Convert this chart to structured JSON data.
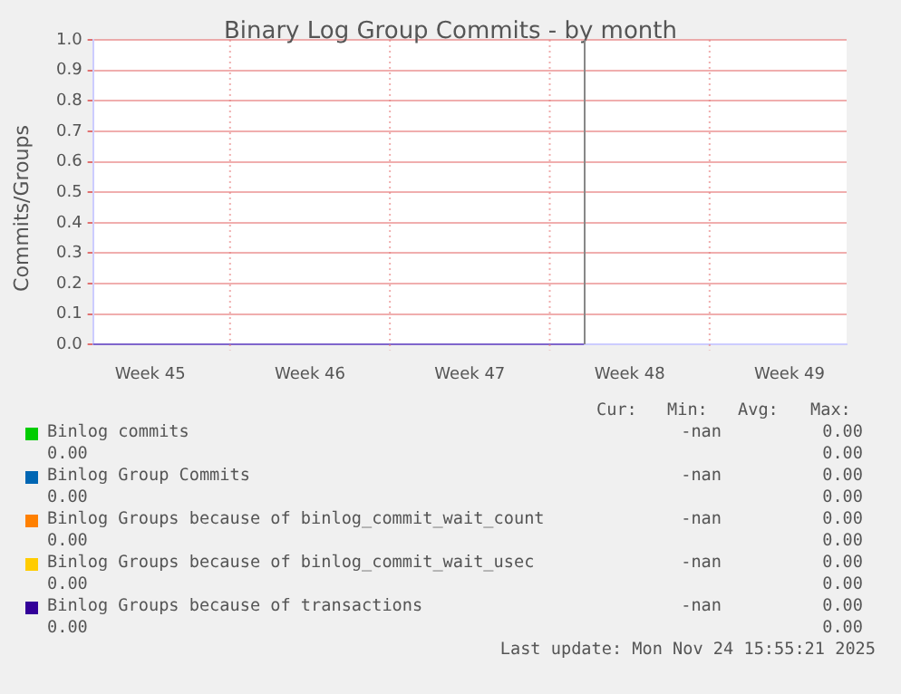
{
  "chart_data": {
    "type": "line",
    "title": "Binary Log Group Commits - by month",
    "ylabel": "Commits/Groups",
    "categories": [
      null,
      null,
      null,
      null,
      null,
      "Week 45",
      null,
      null,
      null,
      null,
      null,
      null,
      null,
      null,
      null,
      null,
      null,
      null,
      null,
      "Week 46",
      null,
      null,
      null,
      null,
      null,
      null,
      null,
      null,
      null,
      null,
      null,
      null,
      null,
      "Week 47",
      null,
      null,
      null,
      null,
      null,
      null,
      null,
      null,
      null,
      null,
      null,
      null,
      null,
      "Week 48",
      null,
      null,
      null,
      null,
      null,
      null,
      null,
      null,
      null,
      null,
      null,
      null,
      null,
      "Week 49",
      null,
      null,
      null,
      null,
      null
    ],
    "series": [
      {
        "name": "Binlog commits",
        "color": "#00cc00",
        "values": [
          null,
          null,
          null,
          null,
          null,
          null,
          null,
          null,
          null,
          null,
          null,
          null,
          null,
          null,
          null,
          null,
          null,
          null,
          null,
          null,
          null,
          null,
          null,
          null,
          null,
          null,
          null,
          null,
          null,
          null,
          null,
          null,
          null,
          null,
          null,
          null,
          null,
          null,
          null,
          null,
          null,
          null,
          null,
          null,
          null,
          null,
          null,
          null,
          null,
          null,
          null,
          null,
          null,
          null,
          null,
          null,
          null,
          null,
          null,
          null,
          null,
          null,
          null,
          null,
          null,
          null,
          null
        ]
      },
      {
        "name": "Binlog Group Commits",
        "color": "#0066b3",
        "values": [
          null,
          null,
          null,
          null,
          null,
          null,
          null,
          null,
          null,
          null,
          null,
          null,
          null,
          null,
          null,
          null,
          null,
          null,
          null,
          null,
          null,
          null,
          null,
          null,
          null,
          null,
          null,
          null,
          null,
          null,
          null,
          null,
          null,
          null,
          null,
          null,
          null,
          null,
          null,
          null,
          null,
          null,
          null,
          null,
          null,
          null,
          null,
          null,
          null,
          null,
          null,
          null,
          null,
          null,
          null,
          null,
          null,
          null,
          null,
          null,
          null,
          null,
          null,
          null,
          null,
          null,
          null
        ]
      },
      {
        "name": "Binlog Groups because of binlog_commit_wait_count",
        "color": "#ff8000",
        "values": [
          null,
          null,
          null,
          null,
          null,
          null,
          null,
          null,
          null,
          null,
          null,
          null,
          null,
          null,
          null,
          null,
          null,
          null,
          null,
          null,
          null,
          null,
          null,
          null,
          null,
          null,
          null,
          null,
          null,
          null,
          null,
          null,
          null,
          null,
          null,
          null,
          null,
          null,
          null,
          null,
          null,
          null,
          null,
          null,
          null,
          null,
          null,
          null,
          null,
          null,
          null,
          null,
          null,
          null,
          null,
          null,
          null,
          null,
          null,
          null,
          null,
          null,
          null,
          null,
          null,
          null,
          null
        ]
      },
      {
        "name": "Binlog Groups because of binlog_commit_wait_usec",
        "color": "#ffcc00",
        "values": [
          null,
          null,
          null,
          null,
          null,
          null,
          null,
          null,
          null,
          null,
          null,
          null,
          null,
          null,
          null,
          null,
          null,
          null,
          null,
          null,
          null,
          null,
          null,
          null,
          null,
          null,
          null,
          null,
          null,
          null,
          null,
          null,
          null,
          null,
          null,
          null,
          null,
          null,
          null,
          null,
          null,
          null,
          null,
          null,
          null,
          null,
          null,
          null,
          null,
          null,
          null,
          null,
          null,
          null,
          null,
          null,
          null,
          null,
          null,
          null,
          null,
          null,
          null,
          null,
          null,
          null,
          null
        ]
      },
      {
        "name": "Binlog Groups because of transactions",
        "color": "#330099",
        "values": [
          0,
          0,
          0,
          0,
          0,
          0,
          0,
          0,
          0,
          0,
          0,
          0,
          0,
          0,
          0,
          0,
          0,
          0,
          0,
          0,
          0,
          0,
          0,
          0,
          0,
          0,
          0,
          0,
          0,
          0,
          0,
          0,
          0,
          0,
          0,
          0,
          0,
          0,
          0,
          0,
          0,
          0,
          0,
          0,
          null,
          null,
          null,
          null,
          null,
          null,
          null,
          null,
          null,
          null,
          null,
          null,
          null,
          null,
          null,
          null,
          null,
          null,
          null,
          null,
          null,
          null,
          null
        ]
      }
    ],
    "ylim": [
      0,
      1
    ],
    "yticks": [
      {
        "value": 0,
        "label": "0.0"
      },
      {
        "value": 0.1,
        "label": "0.1"
      },
      {
        "value": 0.2,
        "label": "0.2"
      },
      {
        "value": 0.3,
        "label": "0.3"
      },
      {
        "value": 0.4,
        "label": "0.4"
      },
      {
        "value": 0.5,
        "label": "0.5"
      },
      {
        "value": 0.6,
        "label": "0.6"
      },
      {
        "value": 0.7,
        "label": "0.7"
      },
      {
        "value": 0.8,
        "label": "0.8"
      },
      {
        "value": 0.9,
        "label": "0.9"
      },
      {
        "value": 1,
        "label": "1.0"
      }
    ],
    "grid": true,
    "legend": "bottom",
    "marker": "none",
    "line_style": "solid",
    "annotations": [
      "Cur:",
      "Min:",
      "Avg:",
      "Max:",
      "-nan",
      "0.00",
      "0.00",
      "0.00",
      "-nan",
      "0.00",
      "0.00",
      "0.00",
      "-nan",
      "0.00",
      "0.00",
      "0.00",
      "-nan",
      "0.00",
      "0.00",
      "0.00",
      "-nan",
      "0.00",
      "0.00",
      "0.00",
      "Last update: Mon Nov 24 15:55:21 2025"
    ]
  }
}
